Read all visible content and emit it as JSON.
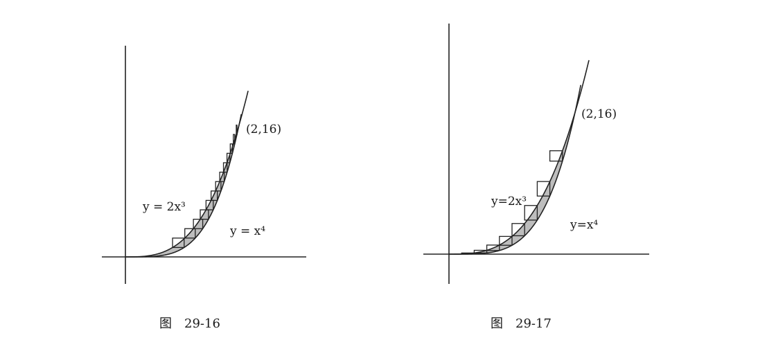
{
  "figures": [
    {
      "caption": "图　29-16",
      "point_label": "(2,16)",
      "upper_curve_label": "y = 2x³",
      "lower_curve_label": "y = x⁴"
    },
    {
      "caption": "图　29-17",
      "point_label": "(2,16)",
      "upper_curve_label": "y=2x³",
      "lower_curve_label": "y=x⁴"
    }
  ]
}
